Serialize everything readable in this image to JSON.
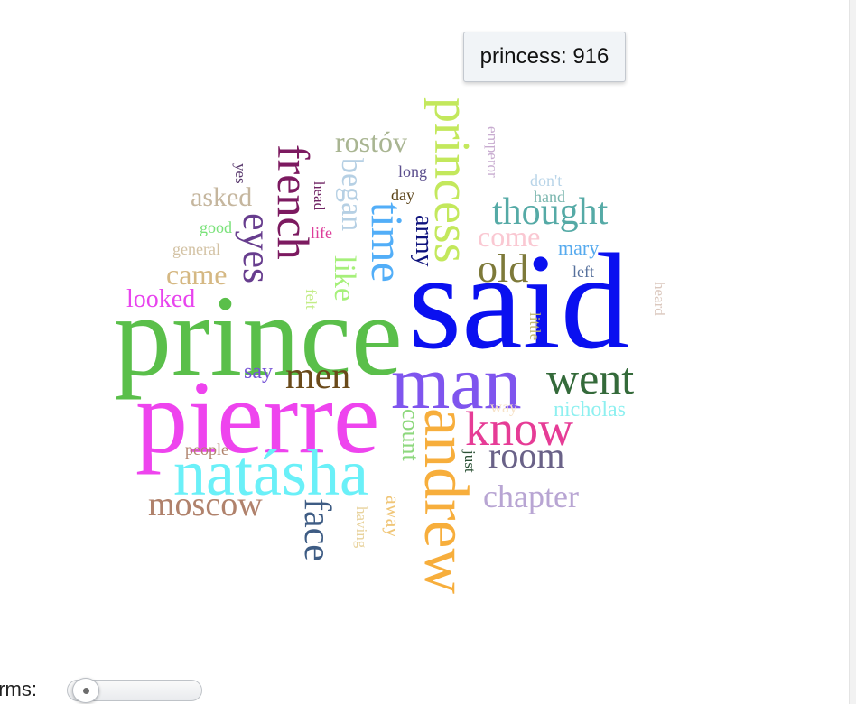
{
  "tooltip": {
    "text": "princess: 916"
  },
  "controls": {
    "terms_label": "erms:",
    "terms_value": 0
  },
  "words": [
    {
      "text": "said",
      "color": "#0a10f0"
    },
    {
      "text": "prince",
      "color": "#5abf4a"
    },
    {
      "text": "pierre",
      "color": "#ee44ee"
    },
    {
      "text": "man",
      "color": "#7f55ee"
    },
    {
      "text": "natásha",
      "color": "#6af0f8"
    },
    {
      "text": "andrew",
      "color": "#f7ae3c"
    },
    {
      "text": "princess",
      "color": "#c3e85c"
    },
    {
      "text": "went",
      "color": "#346a3a"
    },
    {
      "text": "know",
      "color": "#e63c96"
    },
    {
      "text": "french",
      "color": "#7c1a60"
    },
    {
      "text": "time",
      "color": "#52aef8"
    },
    {
      "text": "eyes",
      "color": "#673d8e"
    },
    {
      "text": "face",
      "color": "#3e5c84"
    },
    {
      "text": "thought",
      "color": "#55aaa6"
    },
    {
      "text": "room",
      "color": "#6a6288"
    },
    {
      "text": "moscow",
      "color": "#b0826c"
    },
    {
      "text": "old",
      "color": "#7e7a3a"
    },
    {
      "text": "men",
      "color": "#6a4a1a"
    },
    {
      "text": "chapter",
      "color": "#b8a5d3"
    },
    {
      "text": "rostóv",
      "color": "#a9b592"
    },
    {
      "text": "began",
      "color": "#b6d0e4"
    },
    {
      "text": "came",
      "color": "#d5b883"
    },
    {
      "text": "like",
      "color": "#a6f07a"
    },
    {
      "text": "come",
      "color": "#fac8d2"
    },
    {
      "text": "asked",
      "color": "#c5b69e"
    },
    {
      "text": "looked",
      "color": "#e844ee"
    },
    {
      "text": "army",
      "color": "#0e127c"
    },
    {
      "text": "count",
      "color": "#8ed87e"
    },
    {
      "text": "nicholas",
      "color": "#8ef0f0"
    },
    {
      "text": "mary",
      "color": "#56aaee"
    },
    {
      "text": "say",
      "color": "#7652d6"
    },
    {
      "text": "away",
      "color": "#f0c678"
    },
    {
      "text": "long",
      "color": "#5c4f8e"
    },
    {
      "text": "day",
      "color": "#5a4318"
    },
    {
      "text": "good",
      "color": "#7ae27a"
    },
    {
      "text": "general",
      "color": "#d3c2a4"
    },
    {
      "text": "life",
      "color": "#dd3c9a"
    },
    {
      "text": "head",
      "color": "#702464"
    },
    {
      "text": "yes",
      "color": "#5a3a6e"
    },
    {
      "text": "emperor",
      "color": "#c8acd0"
    },
    {
      "text": "don't",
      "color": "#b8d4e8"
    },
    {
      "text": "hand",
      "color": "#7ab6ae"
    },
    {
      "text": "left",
      "color": "#56709c"
    },
    {
      "text": "heard",
      "color": "#dbc8be"
    },
    {
      "text": "little",
      "color": "#c2b86e"
    },
    {
      "text": "felt",
      "color": "#c2ec86"
    },
    {
      "text": "way",
      "color": "#f6e2c6"
    },
    {
      "text": "people",
      "color": "#b0846e"
    },
    {
      "text": "just",
      "color": "#2c5236"
    },
    {
      "text": "having",
      "color": "#e8d29c"
    }
  ]
}
